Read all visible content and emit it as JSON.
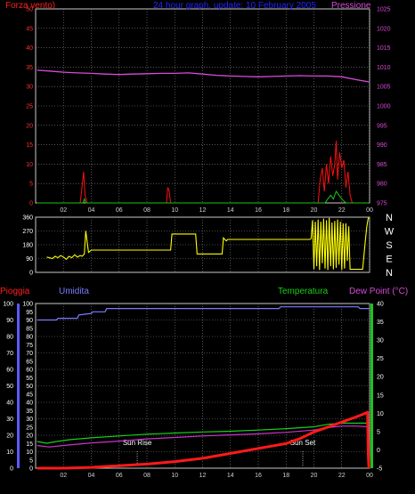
{
  "chart_data": [
    {
      "type": "line",
      "title": "24 hour graph, update: 10 February 2005",
      "left_axis_label": "Forza vento)",
      "right_axis_label": "Pressione",
      "x_ticks": [
        "02",
        "04",
        "06",
        "08",
        "10",
        "12",
        "14",
        "16",
        "18",
        "20",
        "22",
        "00"
      ],
      "x_range": [
        0,
        24
      ],
      "left_ylim": [
        0,
        50
      ],
      "left_ticks": [
        0,
        5,
        10,
        15,
        20,
        25,
        30,
        35,
        40,
        45,
        50
      ],
      "right_ylim": [
        975,
        1025
      ],
      "right_ticks": [
        975,
        980,
        985,
        990,
        995,
        1000,
        1005,
        1010,
        1015,
        1020,
        1025
      ],
      "grid": true,
      "series": [
        {
          "name": "Pressione",
          "color": "#d84bd8",
          "axis": "right",
          "x": [
            0.1,
            1.0,
            2.0,
            3.0,
            4.0,
            5.0,
            6.0,
            7.0,
            8.0,
            9.0,
            10.0,
            11.0,
            12.0,
            13.0,
            14.0,
            15.0,
            16.0,
            17.0,
            18.0,
            19.0,
            20.0,
            21.0,
            22.0,
            23.0,
            23.95
          ],
          "y": [
            1009.2,
            1009.0,
            1008.7,
            1008.5,
            1008.4,
            1008.2,
            1008.1,
            1008.2,
            1008.3,
            1008.4,
            1008.4,
            1008.5,
            1008.2,
            1007.9,
            1007.7,
            1007.6,
            1007.5,
            1007.6,
            1007.7,
            1007.8,
            1007.7,
            1007.7,
            1007.5,
            1006.8,
            1006.2
          ]
        },
        {
          "name": "",
          "color": "#ff1010",
          "axis": "left",
          "x": [
            0.1,
            3.2,
            3.3,
            3.45,
            3.55,
            3.7,
            9.4,
            9.5,
            9.6,
            9.7,
            20.3,
            20.45,
            20.6,
            20.75,
            20.9,
            21.05,
            21.2,
            21.35,
            21.5,
            21.6,
            21.7,
            21.85,
            22.0,
            22.15,
            22.3,
            22.45,
            22.6,
            22.75,
            23.95
          ],
          "y": [
            0,
            0,
            3,
            8,
            2,
            0,
            0,
            4,
            3,
            0,
            0,
            6,
            9,
            3,
            10,
            5,
            12,
            7,
            10,
            16,
            6,
            13,
            9,
            11,
            4,
            8,
            2,
            0,
            0
          ]
        },
        {
          "name": "",
          "color": "#19c619",
          "axis": "left",
          "x": [
            0.1,
            3.4,
            3.5,
            3.6,
            20.8,
            21.0,
            21.2,
            21.4,
            21.6,
            21.8,
            22.0,
            22.3,
            23.95
          ],
          "y": [
            0,
            0,
            1,
            0,
            0,
            1,
            2,
            1,
            3,
            2,
            1,
            0,
            0
          ]
        }
      ]
    },
    {
      "type": "line",
      "title": "",
      "left_ylim": [
        0,
        360
      ],
      "left_ticks": [
        0,
        90,
        180,
        270,
        360
      ],
      "right_labels": [
        "N",
        "W",
        "S",
        "E",
        "N"
      ],
      "x_ticks": [
        "02",
        "04",
        "06",
        "08",
        "10",
        "12",
        "14",
        "16",
        "18",
        "20",
        "22",
        "00"
      ],
      "x_range": [
        0,
        24
      ],
      "grid": true,
      "series": [
        {
          "name": "",
          "color": "#ffff00",
          "axis": "left",
          "x": [
            0.8,
            1.2,
            1.4,
            1.6,
            1.8,
            2.0,
            2.2,
            2.4,
            2.6,
            2.8,
            3.0,
            3.2,
            3.35,
            3.5,
            3.6,
            3.8,
            4.0,
            4.5,
            5.0,
            6.0,
            7.0,
            8.0,
            9.0,
            9.7,
            9.8,
            11.5,
            11.6,
            13.4,
            13.5,
            13.7,
            13.8,
            16.0,
            18.0,
            19.7,
            19.8,
            19.9,
            20.0,
            20.1,
            20.2,
            20.3,
            20.4,
            20.5,
            20.6,
            20.7,
            20.8,
            20.9,
            21.0,
            21.1,
            21.2,
            21.3,
            21.4,
            21.5,
            21.6,
            21.7,
            21.8,
            21.9,
            22.0,
            22.1,
            22.2,
            22.3,
            22.4,
            22.5,
            22.6,
            22.7,
            23.0,
            23.5,
            23.7,
            23.8,
            23.9,
            23.95
          ],
          "y": [
            100,
            90,
            105,
            95,
            110,
            100,
            85,
            105,
            95,
            115,
            100,
            110,
            105,
            120,
            270,
            130,
            145,
            145,
            145,
            145,
            145,
            145,
            145,
            145,
            250,
            250,
            120,
            120,
            225,
            205,
            215,
            215,
            215,
            215,
            220,
            340,
            20,
            330,
            40,
            345,
            15,
            330,
            60,
            350,
            25,
            340,
            15,
            355,
            40,
            325,
            20,
            335,
            30,
            345,
            50,
            330,
            15,
            320,
            25,
            320,
            75,
            300,
            20,
            20,
            20,
            20,
            210,
            300,
            350,
            360
          ]
        }
      ]
    },
    {
      "type": "line",
      "title": "",
      "legend": [
        "Pioggia",
        "Umidita",
        "Temperatura",
        "Dew Point (°C)"
      ],
      "x_ticks": [
        "02",
        "04",
        "06",
        "08",
        "10",
        "12",
        "14",
        "16",
        "18",
        "20",
        "22",
        "00"
      ],
      "x_range": [
        0,
        24
      ],
      "left_ylim": [
        0,
        100
      ],
      "left_ticks": [
        0,
        5,
        10,
        15,
        20,
        25,
        30,
        35,
        40,
        45,
        50,
        55,
        60,
        65,
        70,
        75,
        80,
        85,
        90,
        95,
        100
      ],
      "left2_ticks": [
        0,
        10,
        20,
        30,
        40,
        50,
        60,
        70,
        80,
        90,
        100
      ],
      "right_ylim": [
        -5,
        40
      ],
      "right_ticks": [
        -5,
        0,
        5,
        10,
        15,
        20,
        25,
        30,
        35,
        40
      ],
      "annotations": [
        {
          "text": "Sun Rise",
          "x": 7.3
        },
        {
          "text": "Sun Set",
          "x": 19.2
        }
      ],
      "grid": true,
      "series": [
        {
          "name": "Umidita",
          "color": "#7b7bff",
          "axis": "left",
          "x": [
            0.1,
            1.5,
            1.6,
            3.0,
            3.1,
            4.0,
            4.1,
            5.0,
            5.1,
            6.0,
            10.0,
            15.0,
            17.5,
            17.6,
            20.0,
            21.0,
            23.2,
            23.3,
            23.95
          ],
          "y": [
            90,
            90,
            91,
            91,
            93,
            94,
            95,
            95,
            97,
            97,
            97,
            97,
            97,
            98,
            98,
            98,
            98,
            97,
            97
          ]
        },
        {
          "name": "Temperatura",
          "color": "#19d019",
          "axis": "right",
          "x": [
            0.1,
            0.8,
            1.5,
            2.5,
            4.0,
            6.0,
            8.0,
            10.0,
            12.0,
            14.0,
            16.0,
            18.0,
            20.0,
            21.0,
            22.0,
            23.0,
            23.95
          ],
          "y": [
            2.3,
            1.8,
            2.3,
            2.8,
            3.3,
            3.8,
            4.3,
            4.6,
            4.9,
            5.1,
            5.4,
            5.8,
            6.3,
            7.0,
            7.3,
            7.3,
            7.3
          ]
        },
        {
          "name": "Dew Point (°C)",
          "color": "#cc33cc",
          "axis": "right",
          "x": [
            0.1,
            1.0,
            2.0,
            4.0,
            6.0,
            8.0,
            10.0,
            12.0,
            14.0,
            16.0,
            18.0,
            20.0,
            21.0,
            22.0,
            23.0,
            23.95
          ],
          "y": [
            1.2,
            0.8,
            1.2,
            1.9,
            2.4,
            3.0,
            3.4,
            3.8,
            4.1,
            4.4,
            4.8,
            5.4,
            6.1,
            6.5,
            6.5,
            6.3
          ]
        },
        {
          "name": "Pioggia",
          "color": "#ff1a1a",
          "axis": "left",
          "x": [
            0.1,
            2.0,
            4.0,
            6.0,
            8.0,
            10.0,
            12.0,
            14.0,
            16.0,
            18.0,
            19.0,
            20.0,
            21.0,
            22.0,
            23.0,
            23.6,
            23.85,
            23.9,
            23.95
          ],
          "y": [
            0,
            0,
            0.5,
            1.5,
            2.5,
            4,
            6,
            9,
            12,
            15,
            18,
            22,
            25,
            28,
            31,
            33,
            34,
            10,
            0
          ]
        }
      ]
    }
  ]
}
